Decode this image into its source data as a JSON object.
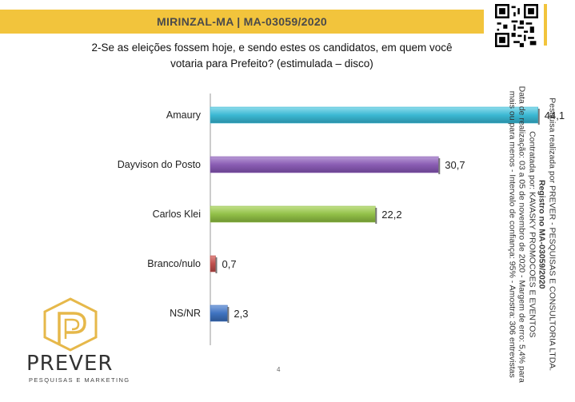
{
  "header": {
    "title": "MIRINZAL-MA   |   MA-03059/2020"
  },
  "question": {
    "line1": "2-Se as eleições fossem hoje, e sendo estes os candidatos, em quem você",
    "line2": "votaria para Prefeito? (estimulada – disco)"
  },
  "side_note": {
    "line1": "Pesquisa realizada por PREVER - PESQUISAS E CONSULTORIA LTDA.",
    "line2": "Registro no MA-03059/2020",
    "line3": "Contratada por: KAVASKY PROMOCOES E EVENTOS",
    "line4": "Data de realização: 03 a 05 de novembro de 2020 - Margem de erro: 5,4% para",
    "line5": "mais ou para menos - Intervalo de confiança: 95% - Amostra: 306 entrevistas"
  },
  "page_number": "4",
  "logo": {
    "name": "PREVER",
    "tagline": "PESQUISAS E MARKETING"
  },
  "colors": {
    "header": "#f2c43c",
    "Amaury": "#3bb8d3",
    "Dayvison do Posto": "#8a5db3",
    "Carlos Klei": "#92c048",
    "Branco/nulo": "#c0504d",
    "NS/NR": "#3f73c0"
  },
  "chart_data": {
    "type": "bar",
    "orientation": "horizontal",
    "categories": [
      "Amaury",
      "Dayvison do Posto",
      "Carlos Klei",
      "Branco/nulo",
      "NS/NR"
    ],
    "values": [
      44.1,
      30.7,
      22.2,
      0.7,
      2.3
    ],
    "value_labels": [
      "44,1",
      "30,7",
      "22,2",
      "0,7",
      "2,3"
    ],
    "xlim": [
      0,
      50
    ],
    "grid": false
  }
}
